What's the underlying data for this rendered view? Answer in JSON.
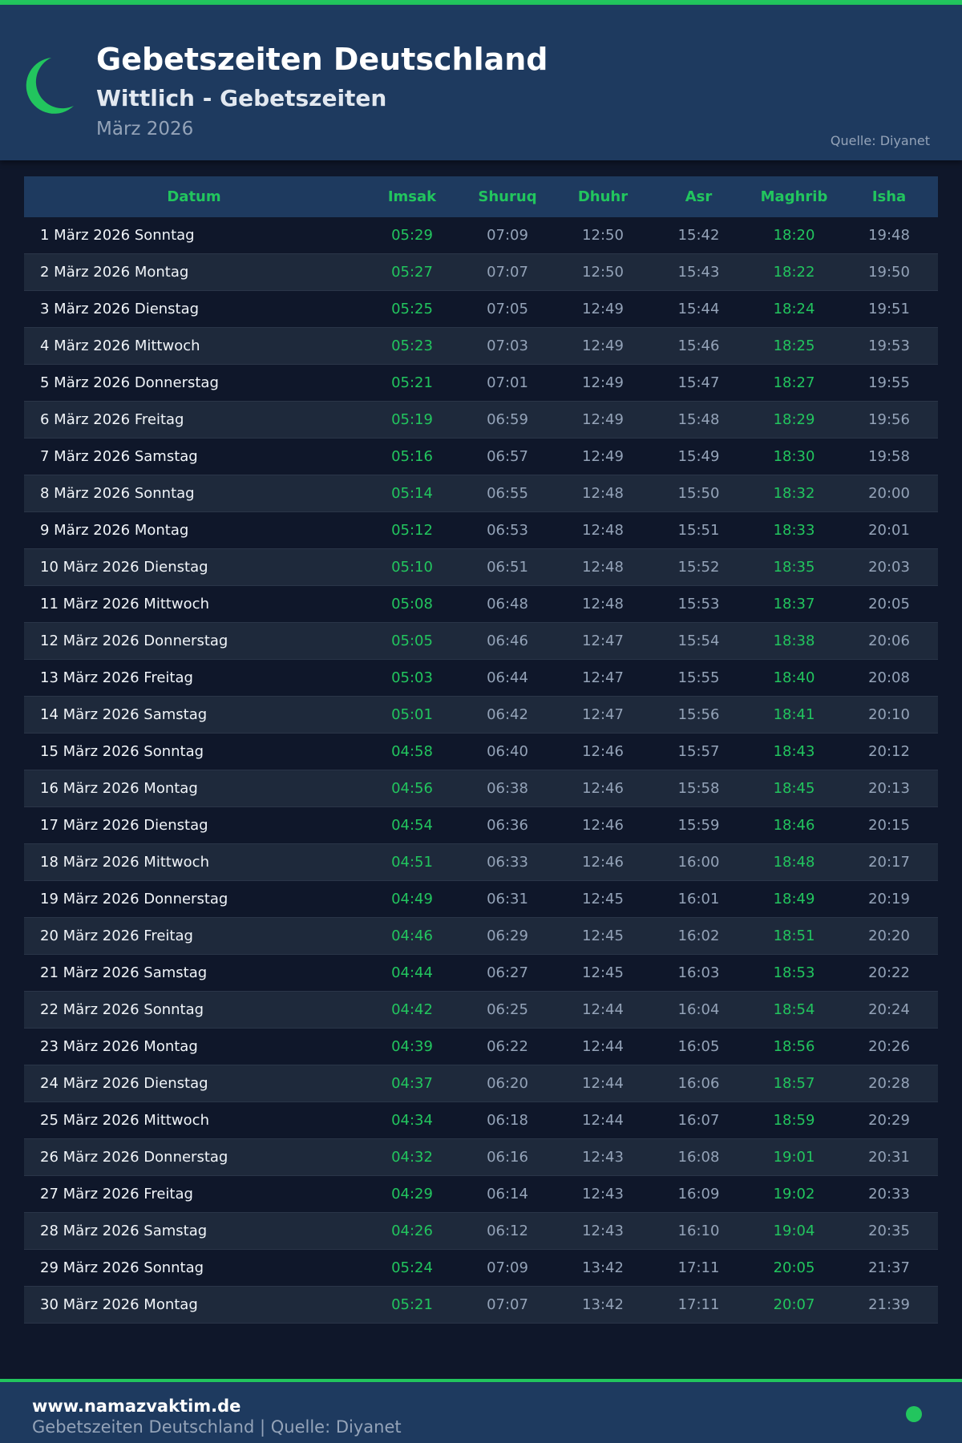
{
  "header": {
    "title": "Gebetszeiten Deutschland",
    "subtitle": "Wittlich - Gebetszeiten",
    "month": "März 2026",
    "source": "Quelle: Diyanet"
  },
  "colors": {
    "accent": "#22c55e",
    "header_bg": "#1e3a5f",
    "page_bg": "#0f172a"
  },
  "table": {
    "columns": [
      "Datum",
      "Imsak",
      "Shuruq",
      "Dhuhr",
      "Asr",
      "Maghrib",
      "Isha"
    ],
    "rows": [
      [
        "1 März 2026 Sonntag",
        "05:29",
        "07:09",
        "12:50",
        "15:42",
        "18:20",
        "19:48"
      ],
      [
        "2 März 2026 Montag",
        "05:27",
        "07:07",
        "12:50",
        "15:43",
        "18:22",
        "19:50"
      ],
      [
        "3 März 2026 Dienstag",
        "05:25",
        "07:05",
        "12:49",
        "15:44",
        "18:24",
        "19:51"
      ],
      [
        "4 März 2026 Mittwoch",
        "05:23",
        "07:03",
        "12:49",
        "15:46",
        "18:25",
        "19:53"
      ],
      [
        "5 März 2026 Donnerstag",
        "05:21",
        "07:01",
        "12:49",
        "15:47",
        "18:27",
        "19:55"
      ],
      [
        "6 März 2026 Freitag",
        "05:19",
        "06:59",
        "12:49",
        "15:48",
        "18:29",
        "19:56"
      ],
      [
        "7 März 2026 Samstag",
        "05:16",
        "06:57",
        "12:49",
        "15:49",
        "18:30",
        "19:58"
      ],
      [
        "8 März 2026 Sonntag",
        "05:14",
        "06:55",
        "12:48",
        "15:50",
        "18:32",
        "20:00"
      ],
      [
        "9 März 2026 Montag",
        "05:12",
        "06:53",
        "12:48",
        "15:51",
        "18:33",
        "20:01"
      ],
      [
        "10 März 2026 Dienstag",
        "05:10",
        "06:51",
        "12:48",
        "15:52",
        "18:35",
        "20:03"
      ],
      [
        "11 März 2026 Mittwoch",
        "05:08",
        "06:48",
        "12:48",
        "15:53",
        "18:37",
        "20:05"
      ],
      [
        "12 März 2026 Donnerstag",
        "05:05",
        "06:46",
        "12:47",
        "15:54",
        "18:38",
        "20:06"
      ],
      [
        "13 März 2026 Freitag",
        "05:03",
        "06:44",
        "12:47",
        "15:55",
        "18:40",
        "20:08"
      ],
      [
        "14 März 2026 Samstag",
        "05:01",
        "06:42",
        "12:47",
        "15:56",
        "18:41",
        "20:10"
      ],
      [
        "15 März 2026 Sonntag",
        "04:58",
        "06:40",
        "12:46",
        "15:57",
        "18:43",
        "20:12"
      ],
      [
        "16 März 2026 Montag",
        "04:56",
        "06:38",
        "12:46",
        "15:58",
        "18:45",
        "20:13"
      ],
      [
        "17 März 2026 Dienstag",
        "04:54",
        "06:36",
        "12:46",
        "15:59",
        "18:46",
        "20:15"
      ],
      [
        "18 März 2026 Mittwoch",
        "04:51",
        "06:33",
        "12:46",
        "16:00",
        "18:48",
        "20:17"
      ],
      [
        "19 März 2026 Donnerstag",
        "04:49",
        "06:31",
        "12:45",
        "16:01",
        "18:49",
        "20:19"
      ],
      [
        "20 März 2026 Freitag",
        "04:46",
        "06:29",
        "12:45",
        "16:02",
        "18:51",
        "20:20"
      ],
      [
        "21 März 2026 Samstag",
        "04:44",
        "06:27",
        "12:45",
        "16:03",
        "18:53",
        "20:22"
      ],
      [
        "22 März 2026 Sonntag",
        "04:42",
        "06:25",
        "12:44",
        "16:04",
        "18:54",
        "20:24"
      ],
      [
        "23 März 2026 Montag",
        "04:39",
        "06:22",
        "12:44",
        "16:05",
        "18:56",
        "20:26"
      ],
      [
        "24 März 2026 Dienstag",
        "04:37",
        "06:20",
        "12:44",
        "16:06",
        "18:57",
        "20:28"
      ],
      [
        "25 März 2026 Mittwoch",
        "04:34",
        "06:18",
        "12:44",
        "16:07",
        "18:59",
        "20:29"
      ],
      [
        "26 März 2026 Donnerstag",
        "04:32",
        "06:16",
        "12:43",
        "16:08",
        "19:01",
        "20:31"
      ],
      [
        "27 März 2026 Freitag",
        "04:29",
        "06:14",
        "12:43",
        "16:09",
        "19:02",
        "20:33"
      ],
      [
        "28 März 2026 Samstag",
        "04:26",
        "06:12",
        "12:43",
        "16:10",
        "19:04",
        "20:35"
      ],
      [
        "29 März 2026 Sonntag",
        "05:24",
        "07:09",
        "13:42",
        "17:11",
        "20:05",
        "21:37"
      ],
      [
        "30 März 2026 Montag",
        "05:21",
        "07:07",
        "13:42",
        "17:11",
        "20:07",
        "21:39"
      ]
    ]
  },
  "footer": {
    "url": "www.namazvaktim.de",
    "subline": "Gebetszeiten Deutschland | Quelle: Diyanet"
  }
}
